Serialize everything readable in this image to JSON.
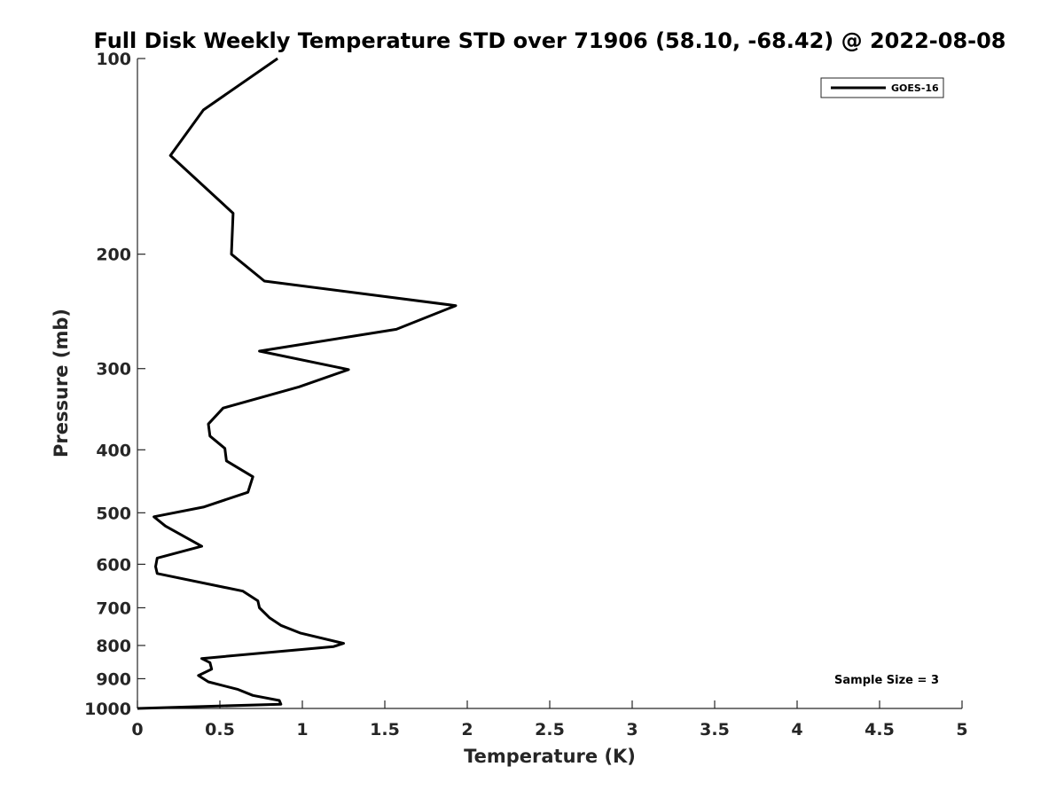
{
  "chart_data": {
    "type": "line",
    "title": "Full Disk Weekly Temperature STD over 71906 (58.10, -68.42) @ 2022-08-08",
    "xlabel": "Temperature (K)",
    "ylabel": "Pressure (mb)",
    "xlim": [
      0,
      5
    ],
    "ylim": [
      100,
      1000
    ],
    "y_scale": "log",
    "y_reversed": true,
    "x_ticks": [
      "0",
      "0.5",
      "1",
      "1.5",
      "2",
      "2.5",
      "3",
      "3.5",
      "4",
      "4.5",
      "5"
    ],
    "y_ticks": [
      "100",
      "200",
      "300",
      "400",
      "500",
      "600",
      "700",
      "800",
      "900",
      "1000"
    ],
    "grid": false,
    "legend": {
      "position": "top-right",
      "entries": [
        "GOES-16"
      ]
    },
    "annotation": "Sample Size = 3",
    "series": [
      {
        "name": "GOES-16",
        "color": "#000000",
        "points": [
          [
            0.85,
            100
          ],
          [
            0.4,
            120
          ],
          [
            0.2,
            141
          ],
          [
            0.58,
            173
          ],
          [
            0.57,
            200
          ],
          [
            0.77,
            220
          ],
          [
            1.93,
            240
          ],
          [
            1.57,
            261
          ],
          [
            0.74,
            282
          ],
          [
            1.28,
            301
          ],
          [
            0.98,
            320
          ],
          [
            0.52,
            345
          ],
          [
            0.43,
            365
          ],
          [
            0.44,
            381
          ],
          [
            0.53,
            398
          ],
          [
            0.54,
            416
          ],
          [
            0.7,
            440
          ],
          [
            0.67,
            465
          ],
          [
            0.4,
            490
          ],
          [
            0.1,
            507
          ],
          [
            0.17,
            524
          ],
          [
            0.39,
            563
          ],
          [
            0.12,
            587
          ],
          [
            0.11,
            605
          ],
          [
            0.12,
            620
          ],
          [
            0.64,
            660
          ],
          [
            0.73,
            683
          ],
          [
            0.74,
            700
          ],
          [
            0.8,
            725
          ],
          [
            0.87,
            745
          ],
          [
            0.99,
            766
          ],
          [
            1.25,
            794
          ],
          [
            1.19,
            803
          ],
          [
            0.39,
            838
          ],
          [
            0.44,
            850
          ],
          [
            0.45,
            870
          ],
          [
            0.37,
            890
          ],
          [
            0.43,
            910
          ],
          [
            0.61,
            935
          ],
          [
            0.7,
            955
          ],
          [
            0.86,
            972
          ],
          [
            0.87,
            985
          ],
          [
            0.0,
            1000
          ]
        ]
      }
    ]
  }
}
